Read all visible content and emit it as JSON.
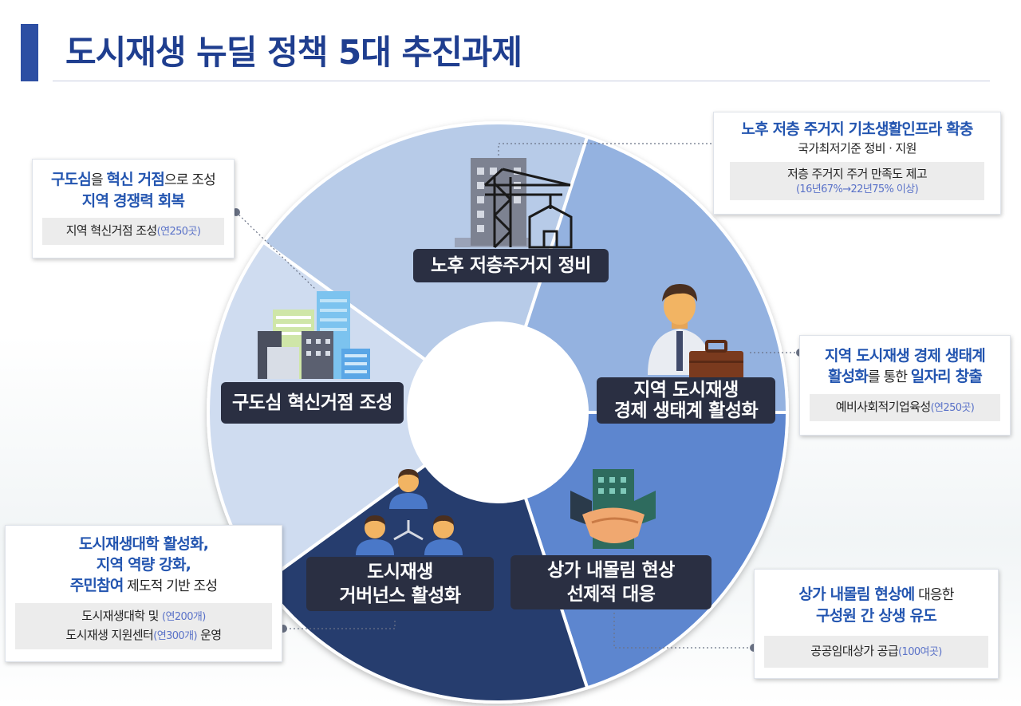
{
  "title": "도시재생 뉴딜 정책 5대 추진과제",
  "segments": [
    {
      "label": "노후 저층주거지 정비",
      "color": "#b7cbe8"
    },
    {
      "label1": "지역 도시재생",
      "label2": "경제 생태계 활성화",
      "color": "#94b2e0"
    },
    {
      "label1": "상가 내몰림 현상",
      "label2": "선제적 대응",
      "color": "#5d86cf"
    },
    {
      "label1": "도시재생",
      "label2": "거버넌스 활성화",
      "color": "#253d6e"
    },
    {
      "label": "구도심 혁신거점 조성",
      "color": "#cfdcf0"
    }
  ],
  "cards": {
    "top_right": {
      "headline": "노후 저층 주거지 기초생활인프라 확충",
      "line": "국가최저기준 정비 · 지원",
      "box1": "저층 주거지 주거 만족도 제고",
      "box_note": "(16년67%→22년75% 이상)"
    },
    "left_top": {
      "h1_a": "구도심",
      "h1_b": "을 ",
      "h1_c": "혁신 거점",
      "h1_d": "으로 조성",
      "h2": "지역 경쟁력 회복",
      "box": "지역 혁신거점 조성",
      "box_note": "(연250곳)"
    },
    "right_mid": {
      "h1": "지역 도시재생 경제 생태계",
      "h2_a": "활성화",
      "h2_b": "를 통한 ",
      "h2_c": "일자리 창출",
      "box": "예비사회적기업육성",
      "box_note": "(연250곳)"
    },
    "left_bottom": {
      "h1": "도시재생대학 활성화,",
      "h2": "지역 역량 강화,",
      "h3_a": "주민참여",
      "h3_b": " 제도적 기반 조성",
      "box1": "도시재생대학 및 ",
      "box1_note": "(연200개)",
      "box2": "도시재생 지원센터",
      "box2_note": "(연300개)",
      "box2_tail": " 운영"
    },
    "right_bottom": {
      "h1_a": "상가 내몰림 현상에",
      "h1_b": " 대응한",
      "h2": "구성원 간 상생 유도",
      "box": "공공임대상가 공급",
      "box_note": "(100여곳)"
    }
  },
  "icons": [
    "construction-crane-icon",
    "businessman-icon",
    "handshake-icon",
    "people-network-icon",
    "city-buildings-icon"
  ]
}
